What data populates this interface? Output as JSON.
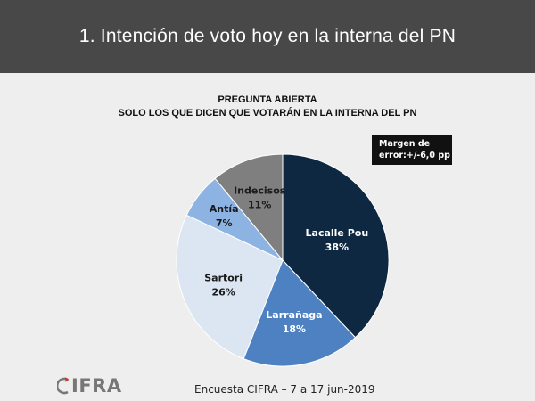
{
  "header": {
    "title": "1. Intención de voto hoy en la interna del PN"
  },
  "subtitle": {
    "line1": "PREGUNTA ABIERTA",
    "line2": "SOLO LOS QUE DICEN QUE VOTARÁN EN LA INTERNA DEL PN"
  },
  "margin_box": {
    "line1": "Margen de",
    "line2": "error:+/-6,0 pp"
  },
  "chart_data": {
    "type": "pie",
    "title": "",
    "slices": [
      {
        "name": "Lacalle Pou",
        "value": 38,
        "label": "38%",
        "color": "#0e2841",
        "text_color": "#ffffff"
      },
      {
        "name": "Larrañaga",
        "value": 18,
        "label": "18%",
        "color": "#4e81c2",
        "text_color": "#ffffff"
      },
      {
        "name": "Sartori",
        "value": 26,
        "label": "26%",
        "color": "#dce6f2",
        "text_color": "#1a1a1a"
      },
      {
        "name": "Antía",
        "value": 7,
        "label": "7%",
        "color": "#8db3e2",
        "text_color": "#1a1a1a"
      },
      {
        "name": "Indecisos",
        "value": 11,
        "label": "11%",
        "color": "#7f7f7f",
        "text_color": "#1a1a1a"
      }
    ]
  },
  "logo": {
    "text": "IFRA"
  },
  "footer": {
    "text": "Encuesta CIFRA  – 7 a 17 jun-2019"
  }
}
